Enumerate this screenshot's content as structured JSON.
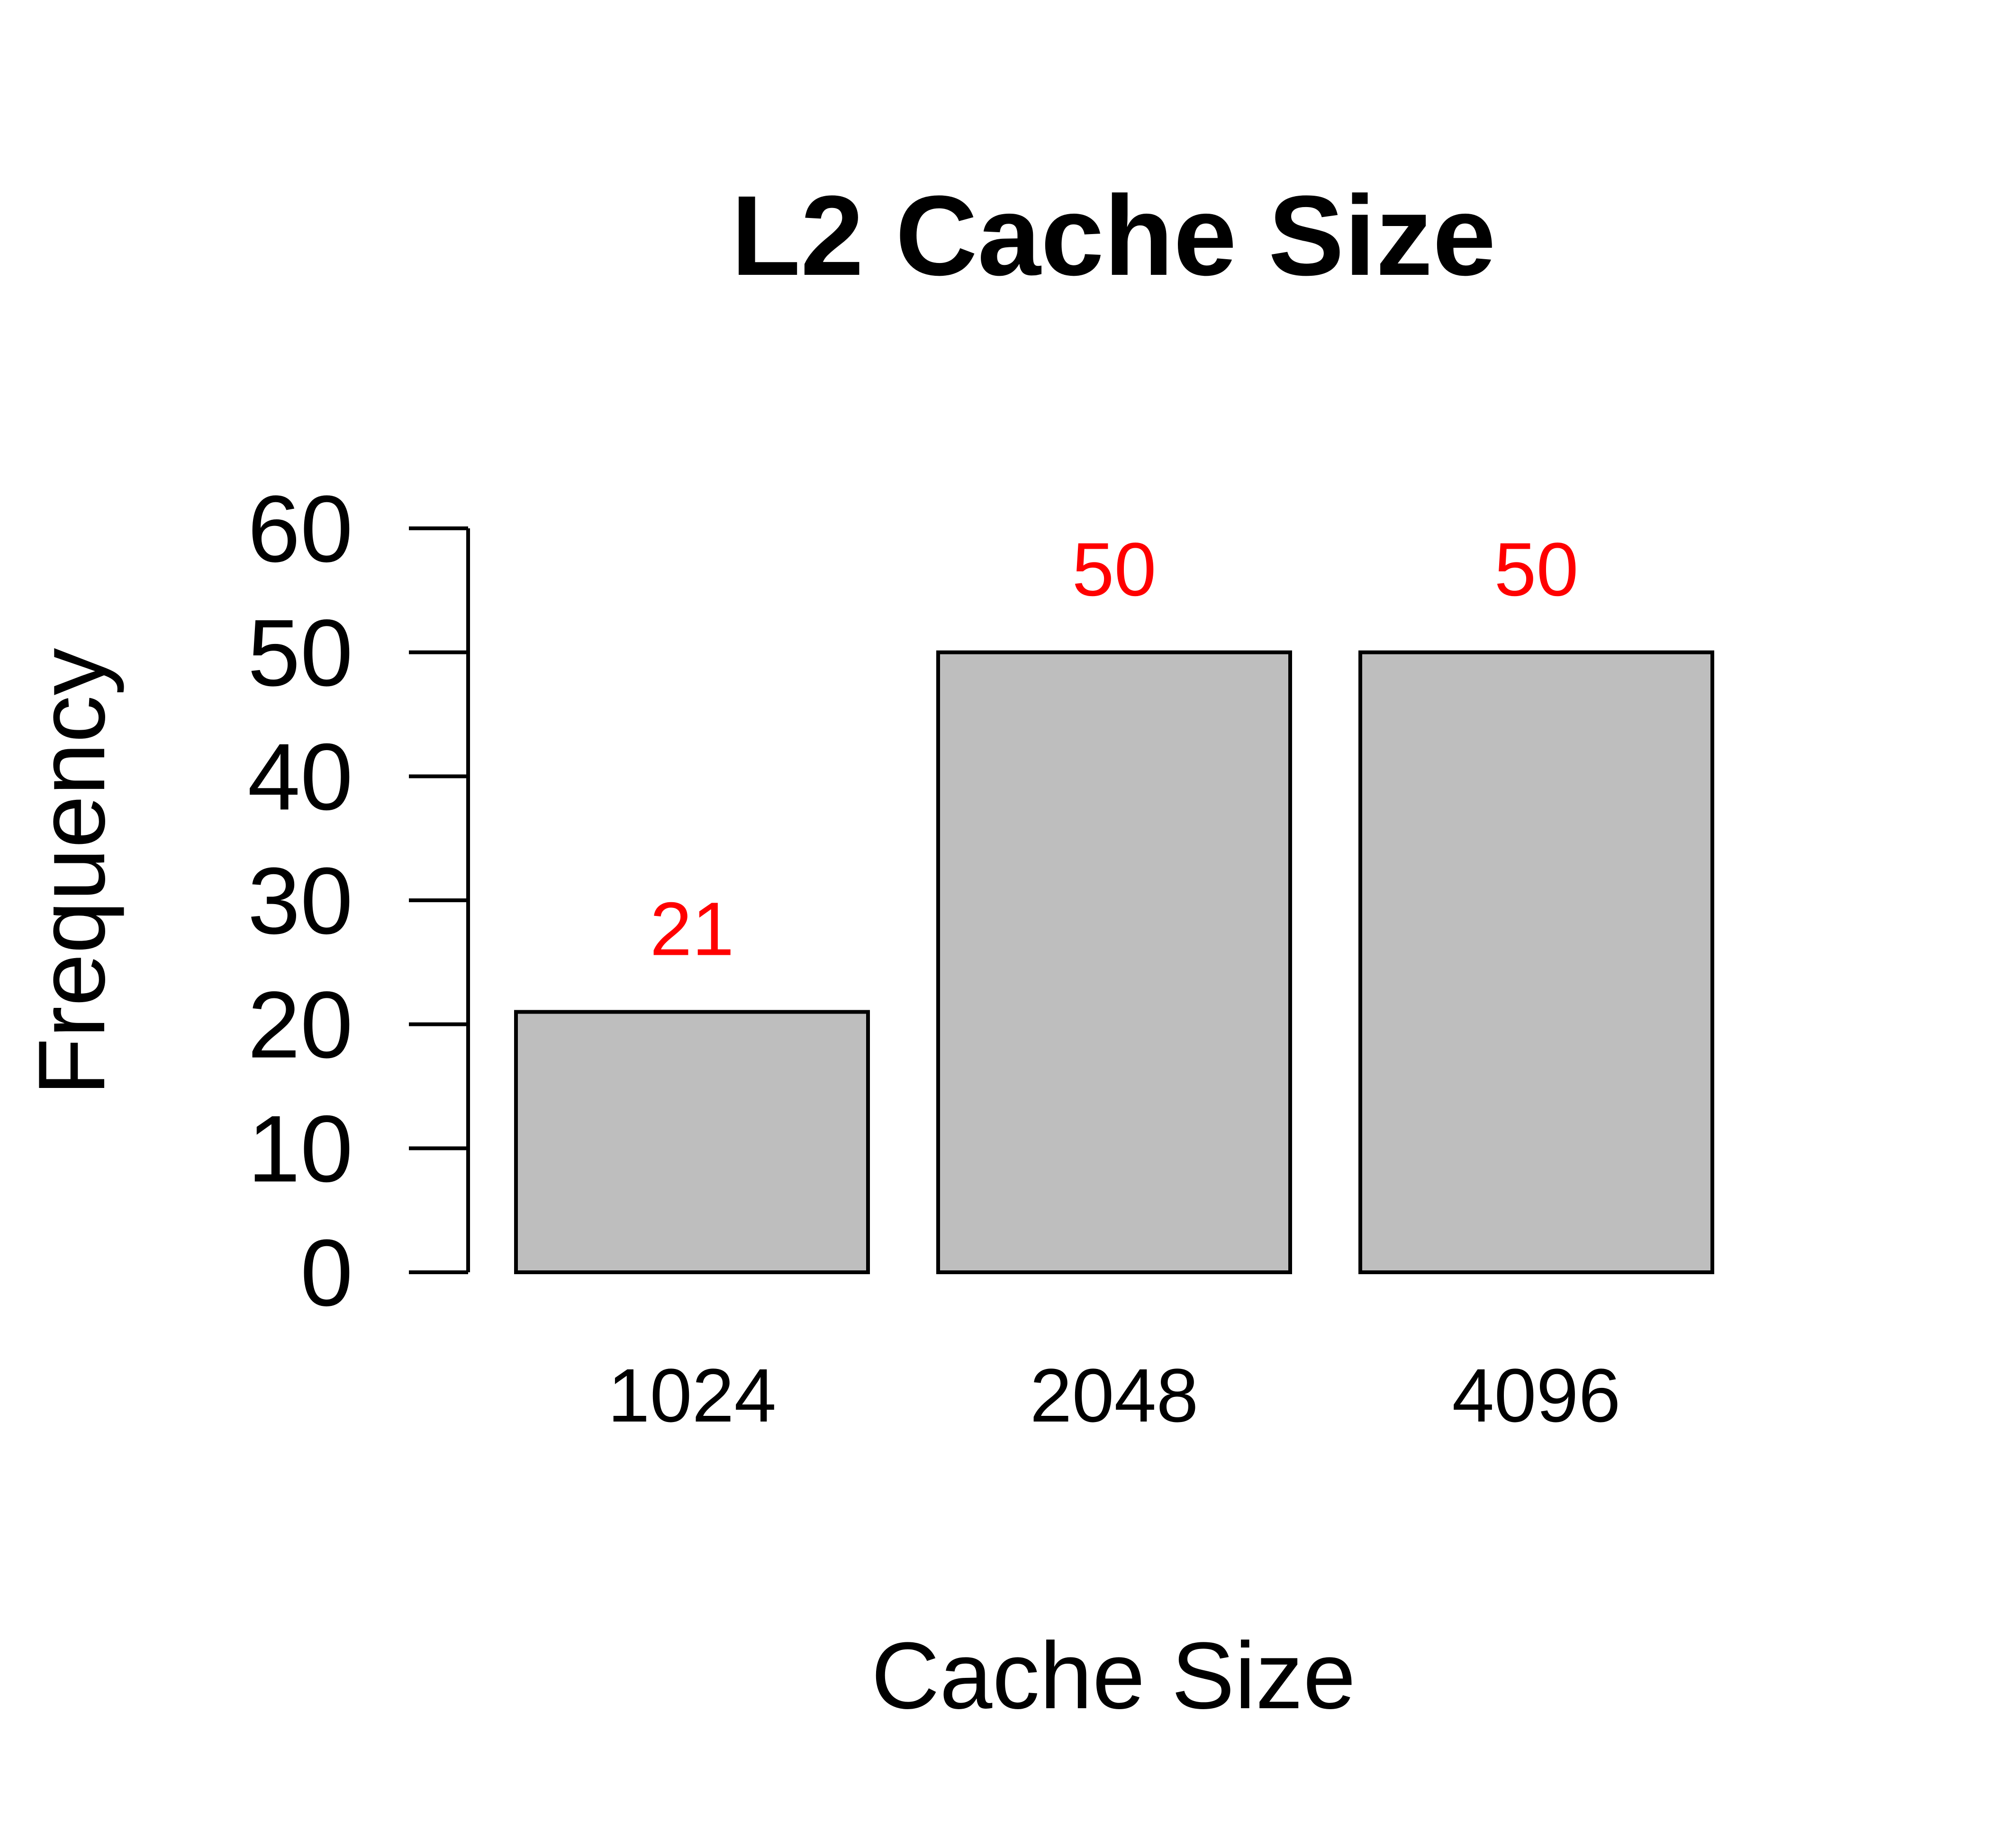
{
  "chart_data": {
    "type": "bar",
    "title": "L2 Cache Size",
    "xlabel": "Cache Size",
    "ylabel": "Frequency",
    "categories": [
      "1024",
      "2048",
      "4096"
    ],
    "values": [
      21,
      50,
      50
    ],
    "data_labels": [
      "21",
      "50",
      "50"
    ],
    "ylim": [
      0,
      60
    ],
    "yticks": [
      0,
      10,
      20,
      30,
      40,
      50,
      60
    ],
    "ytick_labels": [
      "0",
      "10",
      "20",
      "30",
      "40",
      "50",
      "60"
    ],
    "grid": false,
    "legend": "none",
    "colors": {
      "bar_fill": "#bebebe",
      "bar_stroke": "#000000",
      "data_label": "#ff0000",
      "text": "#000000"
    }
  }
}
